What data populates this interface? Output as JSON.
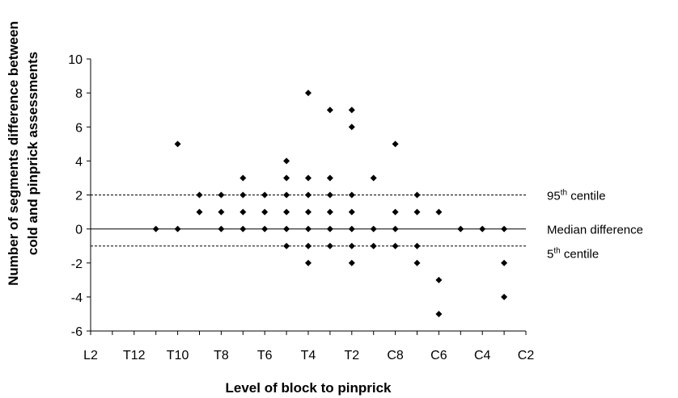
{
  "chart_data": {
    "type": "scatter",
    "xlabel": "Level of block to pinprick",
    "ylabel_lines": [
      "Number of segments difference between",
      "cold  and pinprick assessments"
    ],
    "x_categories": [
      "L2",
      "L1",
      "T12",
      "T11",
      "T10",
      "T9",
      "T8",
      "T7",
      "T6",
      "T5",
      "T4",
      "T3",
      "T2",
      "T1",
      "C8",
      "C7",
      "C6",
      "C5",
      "C4",
      "C3",
      "C2"
    ],
    "x_tick_labels": [
      "L2",
      "T12",
      "T10",
      "T8",
      "T6",
      "T4",
      "T2",
      "C8",
      "C6",
      "C4",
      "C2"
    ],
    "ylim": [
      -6,
      10
    ],
    "y_ticks": [
      "-6",
      "-4",
      "-2",
      "0",
      "2",
      "4",
      "6",
      "8",
      "10"
    ],
    "points": [
      {
        "x": "T11",
        "y": 0
      },
      {
        "x": "T10",
        "y": 5
      },
      {
        "x": "T10",
        "y": 0
      },
      {
        "x": "T9",
        "y": 2
      },
      {
        "x": "T9",
        "y": 1
      },
      {
        "x": "T8",
        "y": 2
      },
      {
        "x": "T8",
        "y": 1
      },
      {
        "x": "T8",
        "y": 0
      },
      {
        "x": "T7",
        "y": 3
      },
      {
        "x": "T7",
        "y": 2
      },
      {
        "x": "T7",
        "y": 1
      },
      {
        "x": "T7",
        "y": 0
      },
      {
        "x": "T6",
        "y": 2
      },
      {
        "x": "T6",
        "y": 1
      },
      {
        "x": "T6",
        "y": 0
      },
      {
        "x": "T5",
        "y": 4
      },
      {
        "x": "T5",
        "y": 3
      },
      {
        "x": "T5",
        "y": 2
      },
      {
        "x": "T5",
        "y": 1
      },
      {
        "x": "T5",
        "y": 0
      },
      {
        "x": "T5",
        "y": -1
      },
      {
        "x": "T4",
        "y": 8
      },
      {
        "x": "T4",
        "y": 3
      },
      {
        "x": "T4",
        "y": 2
      },
      {
        "x": "T4",
        "y": 1
      },
      {
        "x": "T4",
        "y": 0
      },
      {
        "x": "T4",
        "y": -1
      },
      {
        "x": "T4",
        "y": -2
      },
      {
        "x": "T3",
        "y": 7
      },
      {
        "x": "T3",
        "y": 3
      },
      {
        "x": "T3",
        "y": 2
      },
      {
        "x": "T3",
        "y": 1
      },
      {
        "x": "T3",
        "y": 0
      },
      {
        "x": "T3",
        "y": -1
      },
      {
        "x": "T2",
        "y": 7
      },
      {
        "x": "T2",
        "y": 6
      },
      {
        "x": "T2",
        "y": 2
      },
      {
        "x": "T2",
        "y": 1
      },
      {
        "x": "T2",
        "y": 0
      },
      {
        "x": "T2",
        "y": -1
      },
      {
        "x": "T2",
        "y": -2
      },
      {
        "x": "T1",
        "y": 3
      },
      {
        "x": "T1",
        "y": 0
      },
      {
        "x": "T1",
        "y": -1
      },
      {
        "x": "C8",
        "y": 5
      },
      {
        "x": "C8",
        "y": 1
      },
      {
        "x": "C8",
        "y": 0
      },
      {
        "x": "C8",
        "y": -1
      },
      {
        "x": "C7",
        "y": 2
      },
      {
        "x": "C7",
        "y": 1
      },
      {
        "x": "C7",
        "y": -1
      },
      {
        "x": "C7",
        "y": -2
      },
      {
        "x": "C6",
        "y": 1
      },
      {
        "x": "C6",
        "y": -3
      },
      {
        "x": "C6",
        "y": -5
      },
      {
        "x": "C5",
        "y": 0
      },
      {
        "x": "C4",
        "y": 0
      },
      {
        "x": "C3",
        "y": 0
      },
      {
        "x": "C3",
        "y": -2
      },
      {
        "x": "C3",
        "y": -4
      }
    ],
    "reference_lines": [
      {
        "value": 2,
        "style": "dashed",
        "label_main": "95",
        "label_sup": "th",
        "label_rest": " centile"
      },
      {
        "value": 0,
        "style": "solid",
        "label_main": "Median difference",
        "label_sup": "",
        "label_rest": ""
      },
      {
        "value": -1,
        "style": "dashed",
        "label_main": "5",
        "label_sup": "th",
        "label_rest": " centile"
      }
    ],
    "marker": "diamond",
    "grid": false,
    "colors": {
      "marker": "#000000",
      "axis": "#000000"
    }
  }
}
